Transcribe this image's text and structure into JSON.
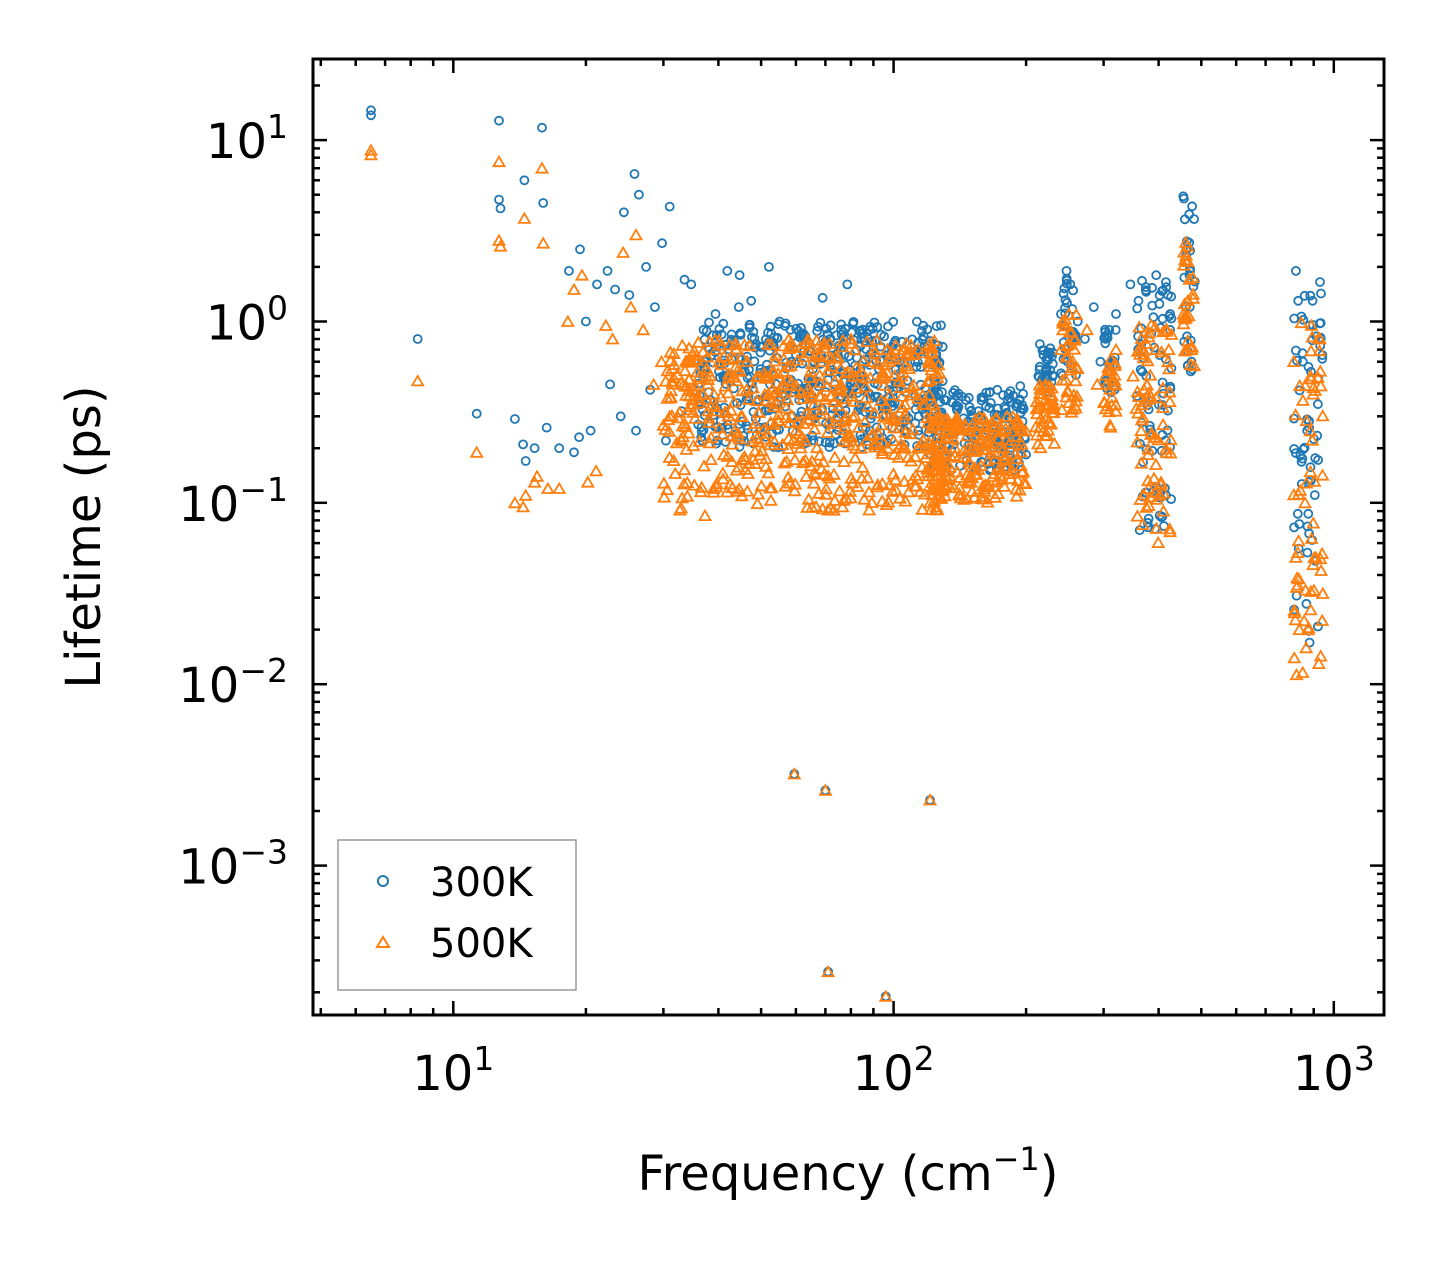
{
  "chart_data": {
    "type": "scatter",
    "xlabel": "Frequency (cm",
    "xlabel_sup": "−1",
    "xlabel_tail": ")",
    "ylabel": "Lifetime (ps)",
    "x_scale": "log",
    "y_scale": "log",
    "xlim": [
      4.8,
      1300
    ],
    "ylim": [
      0.00015,
      28
    ],
    "grid": false,
    "legend_position": "bottom-left",
    "x_ticks": [
      {
        "value": 10,
        "base": "10",
        "exp": "1"
      },
      {
        "value": 100,
        "base": "10",
        "exp": "2"
      },
      {
        "value": 1000,
        "base": "10",
        "exp": "3"
      }
    ],
    "y_ticks": [
      {
        "value": 10,
        "base": "10",
        "exp": "1"
      },
      {
        "value": 1,
        "base": "10",
        "exp": "0"
      },
      {
        "value": 0.1,
        "base": "10",
        "exp": "−1"
      },
      {
        "value": 0.01,
        "base": "10",
        "exp": "−2"
      },
      {
        "value": 0.001,
        "base": "10",
        "exp": "−3"
      }
    ],
    "series": [
      {
        "name": "300K",
        "marker": "circle",
        "color": "#1f77b4",
        "x": [
          6.5,
          6.5,
          8.3,
          11.3,
          12.7,
          12.7,
          12.8,
          14.5,
          15.9,
          16.0,
          13.8,
          14.4,
          14.6,
          15.3,
          16.3,
          17.4,
          18.3,
          18.8,
          19.4,
          20.0,
          19.3,
          20.5,
          21.2,
          22.4,
          23.3,
          24.4,
          25.1,
          25.8,
          26.4,
          27.4,
          28.7,
          29.8,
          31.0,
          33.5,
          34.7,
          37.0,
          39.4,
          41.9,
          44.7,
          47.5,
          52.1,
          55.1,
          58.3,
          22.7,
          24.0,
          26.0,
          28.0,
          30.4,
          33.0,
          36.0,
          41.0,
          44.5,
          57.0,
          62.0,
          66.0,
          69.0,
          71.0,
          73.5,
          76.0,
          78.5,
          80.0,
          84.0,
          88.0,
          92.0,
          97.0,
          105.0,
          112.0,
          118.0,
          121.0,
          124.0,
          128.0,
          140.0,
          150.0,
          160.0,
          172.0,
          185.0,
          194.0,
          215.0,
          222.0,
          230.0,
          240.0,
          247.0,
          252.0,
          262.0,
          272.0,
          285.0,
          295.0,
          320.0,
          345.0,
          360.0,
          375.0,
          395.0,
          410.0,
          420.0,
          425.0,
          455.0,
          462.0,
          470.0,
          475.0,
          820.0,
          830.0,
          850.0,
          870.0,
          895.0,
          920.0,
          930.0,
          59.5,
          70.0,
          121.0,
          71.0,
          96.0
        ],
        "y": [
          14.6,
          13.7,
          0.8,
          0.31,
          12.8,
          4.7,
          4.2,
          6.0,
          11.7,
          4.5,
          0.29,
          0.21,
          0.17,
          0.2,
          0.26,
          0.2,
          1.9,
          0.19,
          2.5,
          1.0,
          0.23,
          0.25,
          1.6,
          1.9,
          1.5,
          4.0,
          1.4,
          6.5,
          5.0,
          2.0,
          1.2,
          2.7,
          4.3,
          1.7,
          1.6,
          0.9,
          1.1,
          1.9,
          1.8,
          1.3,
          2.0,
          1.0,
          0.9,
          0.45,
          0.3,
          0.25,
          0.42,
          0.22,
          0.32,
          0.27,
          0.5,
          1.2,
          0.55,
          0.85,
          0.6,
          1.35,
          0.75,
          0.45,
          0.9,
          1.6,
          0.5,
          0.5,
          0.4,
          0.45,
          0.38,
          0.55,
          0.68,
          0.35,
          0.78,
          0.45,
          0.3,
          0.28,
          0.32,
          0.38,
          0.42,
          0.36,
          0.44,
          0.75,
          0.55,
          0.5,
          1.1,
          1.9,
          1.6,
          1.0,
          0.8,
          1.2,
          0.6,
          1.1,
          1.6,
          1.3,
          0.5,
          1.8,
          0.4,
          1.4,
          1.1,
          4.9,
          2.5,
          1.8,
          0.6,
          1.9,
          1.3,
          0.6,
          0.25,
          1.3,
          0.35,
          1.65,
          0.0032,
          0.0026,
          0.0023,
          0.00026,
          0.00019
        ]
      },
      {
        "name": "500K",
        "marker": "triangle",
        "color": "#ff7f0e",
        "x": [
          6.5,
          6.5,
          8.3,
          11.3,
          12.7,
          12.7,
          12.8,
          14.5,
          15.9,
          16.0,
          13.8,
          14.4,
          14.6,
          15.3,
          15.5,
          16.4,
          17.4,
          18.2,
          18.8,
          19.6,
          20.2,
          21.1,
          22.2,
          23.0,
          24.3,
          25.3,
          26.0,
          27.0,
          28.5,
          29.7,
          31.0,
          33.0,
          35.0,
          37.3,
          39.0,
          42.0,
          45.0,
          48.0,
          52.0,
          56.0,
          60.0,
          65.0,
          69.0,
          74.0,
          78.0,
          82.0,
          86.0,
          90.0,
          95.0,
          100.0,
          106.0,
          112.0,
          118.0,
          121.0,
          126.0,
          135.0,
          148.0,
          162.0,
          178.0,
          194.0,
          215.0,
          225.0,
          240.0,
          250.0,
          262.0,
          275.0,
          290.0,
          320.0,
          350.0,
          365.0,
          380.0,
          395.0,
          410.0,
          420.0,
          455.0,
          465.0,
          475.0,
          820.0,
          835.0,
          860.0,
          885.0,
          910.0,
          930.0,
          59.5,
          70.0,
          121.0,
          71.0,
          96.0
        ],
        "y": [
          8.8,
          8.3,
          0.47,
          0.19,
          7.6,
          2.8,
          2.6,
          3.7,
          7.0,
          2.7,
          0.1,
          0.095,
          0.11,
          0.13,
          0.14,
          0.12,
          0.12,
          1.0,
          1.5,
          1.8,
          0.13,
          0.15,
          0.95,
          0.8,
          2.4,
          1.2,
          3.0,
          0.9,
          0.45,
          0.6,
          0.3,
          0.22,
          0.35,
          0.085,
          0.12,
          0.18,
          0.3,
          0.26,
          0.4,
          0.45,
          0.25,
          0.38,
          0.6,
          0.3,
          0.52,
          0.2,
          0.28,
          0.24,
          0.3,
          0.22,
          0.2,
          0.18,
          0.35,
          0.1,
          0.16,
          0.18,
          0.2,
          0.22,
          0.2,
          0.25,
          0.4,
          0.35,
          0.7,
          1.1,
          0.55,
          0.9,
          0.45,
          0.7,
          0.5,
          0.25,
          0.12,
          0.7,
          0.09,
          0.6,
          1.1,
          2.6,
          0.7,
          0.05,
          0.02,
          0.1,
          0.5,
          0.05,
          0.8,
          0.0032,
          0.0026,
          0.0023,
          0.00026,
          0.00019
        ]
      }
    ],
    "bands": [
      {
        "series": "300K",
        "x_min": 36,
        "x_max": 130,
        "y_min": 0.2,
        "y_max": 1.0
      },
      {
        "series": "300K",
        "x_min": 120,
        "x_max": 200,
        "y_min": 0.15,
        "y_max": 0.42
      },
      {
        "series": "300K",
        "x_min": 213,
        "x_max": 230,
        "y_min": 0.4,
        "y_max": 0.75
      },
      {
        "series": "300K",
        "x_min": 240,
        "x_max": 260,
        "y_min": 0.5,
        "y_max": 1.9
      },
      {
        "series": "300K",
        "x_min": 300,
        "x_max": 320,
        "y_min": 0.4,
        "y_max": 1.0
      },
      {
        "series": "300K",
        "x_min": 355,
        "x_max": 430,
        "y_min": 0.07,
        "y_max": 1.7
      },
      {
        "series": "300K",
        "x_min": 455,
        "x_max": 485,
        "y_min": 0.5,
        "y_max": 4.9
      },
      {
        "series": "300K",
        "x_min": 810,
        "x_max": 945,
        "y_min": 0.015,
        "y_max": 1.8
      },
      {
        "series": "500K",
        "x_min": 30,
        "x_max": 130,
        "y_min": 0.09,
        "y_max": 0.8
      },
      {
        "series": "500K",
        "x_min": 120,
        "x_max": 200,
        "y_min": 0.1,
        "y_max": 0.3
      },
      {
        "series": "500K",
        "x_min": 210,
        "x_max": 232,
        "y_min": 0.2,
        "y_max": 0.45
      },
      {
        "series": "500K",
        "x_min": 240,
        "x_max": 262,
        "y_min": 0.3,
        "y_max": 1.1
      },
      {
        "series": "500K",
        "x_min": 300,
        "x_max": 320,
        "y_min": 0.25,
        "y_max": 0.7
      },
      {
        "series": "500K",
        "x_min": 355,
        "x_max": 430,
        "y_min": 0.06,
        "y_max": 1.0
      },
      {
        "series": "500K",
        "x_min": 455,
        "x_max": 485,
        "y_min": 0.45,
        "y_max": 3.0
      },
      {
        "series": "500K",
        "x_min": 810,
        "x_max": 945,
        "y_min": 0.011,
        "y_max": 1.0
      }
    ]
  }
}
